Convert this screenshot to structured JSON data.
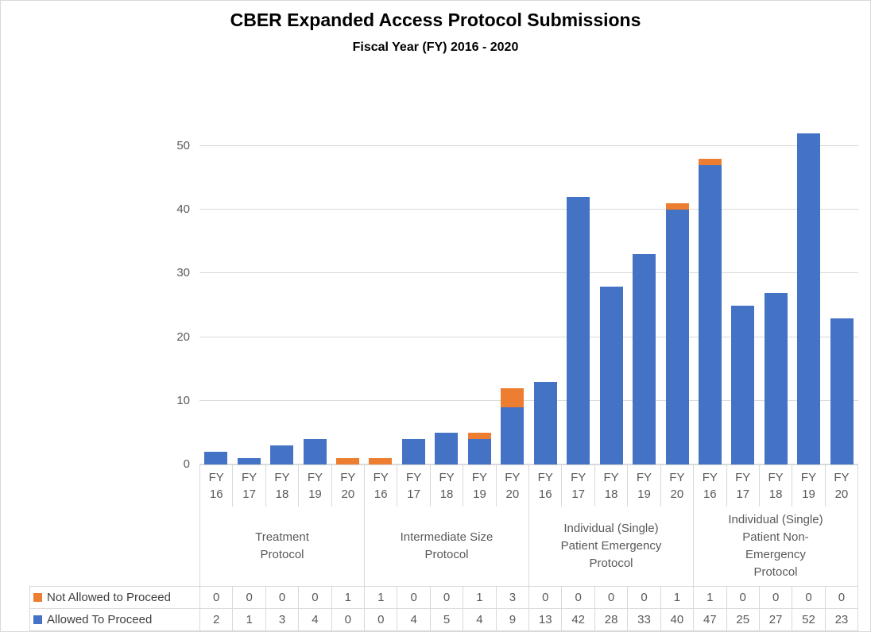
{
  "colors": {
    "allowed": "#4472C4",
    "not_allowed": "#ED7D31",
    "gridline": "#D9D9D9",
    "table_border": "#D9D9D9",
    "axis_text": "#595959",
    "title_text": "#000000"
  },
  "chart_data": {
    "type": "bar",
    "stacked": true,
    "title": "CBER Expanded Access Protocol Submissions",
    "subtitle": "Fiscal Year (FY) 2016 - 2020",
    "xlabel": "",
    "ylabel": "",
    "ylim": [
      0,
      55
    ],
    "yticks": [
      0,
      10,
      20,
      30,
      40,
      50
    ],
    "grid": true,
    "legend_position": "data-table-left",
    "groups": [
      {
        "label": "Treatment\nProtocol",
        "categories": [
          "FY 16",
          "FY 17",
          "FY 18",
          "FY 19",
          "FY 20"
        ]
      },
      {
        "label": "Intermediate Size\nProtocol",
        "categories": [
          "FY 16",
          "FY 17",
          "FY 18",
          "FY 19",
          "FY 20"
        ]
      },
      {
        "label": "Individual (Single)\nPatient Emergency\nProtocol",
        "categories": [
          "FY 16",
          "FY 17",
          "FY 18",
          "FY 19",
          "FY 20"
        ]
      },
      {
        "label": "Individual (Single)\nPatient Non-\nEmergency\nProtocol",
        "categories": [
          "FY 16",
          "FY 17",
          "FY 18",
          "FY 19",
          "FY 20"
        ]
      }
    ],
    "series": [
      {
        "name": "Not Allowed to Proceed",
        "color": "#ED7D31",
        "values": [
          0,
          0,
          0,
          0,
          1,
          1,
          0,
          0,
          1,
          3,
          0,
          0,
          0,
          0,
          1,
          1,
          0,
          0,
          0,
          0
        ]
      },
      {
        "name": "Allowed To Proceed",
        "color": "#4472C4",
        "values": [
          2,
          1,
          3,
          4,
          0,
          0,
          4,
          5,
          4,
          9,
          13,
          42,
          28,
          33,
          40,
          47,
          25,
          27,
          52,
          23
        ]
      }
    ]
  }
}
